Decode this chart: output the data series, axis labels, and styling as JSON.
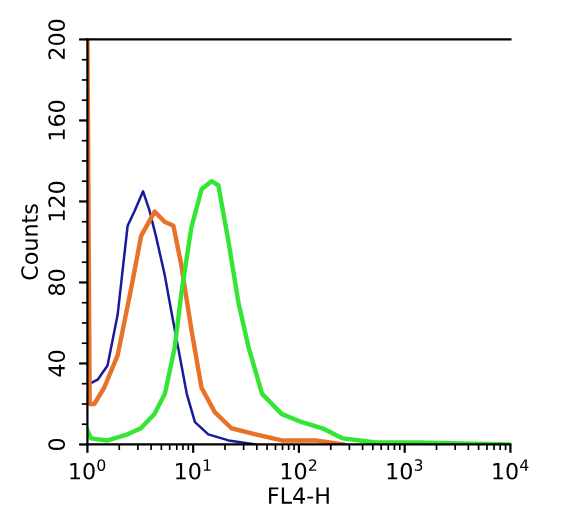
{
  "chart_data": {
    "type": "line",
    "xlabel": "FL4-H",
    "ylabel": "Counts",
    "log": "x",
    "xlim": [
      1,
      10000
    ],
    "ylim": [
      0,
      200
    ],
    "xticks": [
      {
        "value": 1,
        "label": "10$^{0}$"
      },
      {
        "value": 10,
        "label": "10$^{1}$"
      },
      {
        "value": 100,
        "label": "10$^{2}$"
      },
      {
        "value": 1000,
        "label": "10$^{3}$"
      },
      {
        "value": 10000,
        "label": "10$^{4}$"
      }
    ],
    "yticks": [
      0,
      40,
      80,
      120,
      160,
      200
    ],
    "grid": false,
    "legend": false,
    "marker": "none",
    "line_style": "solid",
    "series": [
      {
        "color": "#1a1a9a",
        "x": [
          1.05,
          1.25,
          1.55,
          1.93,
          2.4,
          2.78,
          3.36,
          3.84,
          4.44,
          5.37,
          6.2,
          7.2,
          8.7,
          10.4,
          13.9,
          21.6,
          38.7
        ],
        "values": [
          30,
          32,
          39,
          64,
          108,
          115,
          125,
          116,
          103,
          84,
          66,
          48,
          25,
          11,
          5,
          2,
          0
        ]
      },
      {
        "color": "#e8722a",
        "x": [
          1,
          1.05,
          1.16,
          1.44,
          1.93,
          2.59,
          3.22,
          4.32,
          5.37,
          6.5,
          7.7,
          9.6,
          12,
          16,
          23,
          39,
          69,
          144,
          260
        ],
        "values": [
          200,
          20,
          20,
          28,
          44,
          77,
          103,
          115,
          110,
          108,
          89,
          57,
          28,
          16,
          8,
          5,
          2,
          2,
          0
        ]
      },
      {
        "color": "#33e633",
        "x": [
          1,
          1.08,
          1.55,
          2.4,
          3.2,
          4.3,
          5.4,
          6.7,
          7.7,
          9.6,
          12,
          14.9,
          17.3,
          21.6,
          26.8,
          33.4,
          44.8,
          69,
          107,
          167,
          260,
          536,
          1300,
          10000
        ],
        "values": [
          7,
          3,
          2,
          5,
          8,
          15,
          25,
          48,
          74,
          107,
          126,
          130,
          128,
          100,
          70,
          48,
          25,
          15,
          11,
          8,
          3,
          1,
          1,
          0
        ]
      }
    ]
  }
}
